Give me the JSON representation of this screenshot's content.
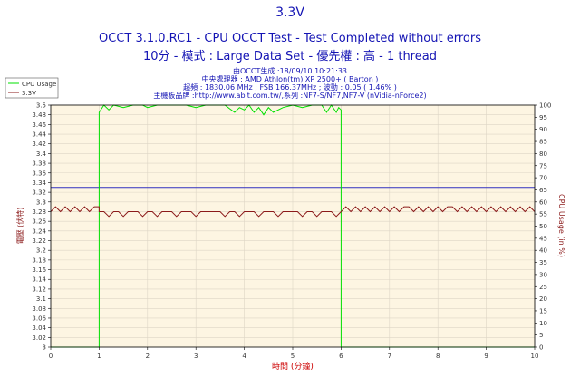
{
  "header": {
    "title": "3.3V",
    "subtitle1": "OCCT 3.1.0.RC1 - CPU OCCT Test - Test Completed without errors",
    "subtitle2": "10分 - 模式 : Large Data Set - 優先權 : 高 - 1 thread"
  },
  "info": {
    "line1": "由OCCT生成 :18/09/10 10:21:33",
    "line2": "中央處理器 : AMD Athlon(tm) XP 2500+ ( Barton )",
    "line3": "超頻 : 1830.06 MHz ; FSB 166.37MHz ; 波動 : 0.05 ( 1.46% )",
    "line4": "主機板品牌 :http://www.abit.com.tw/,系列 :NF7-S/NF7,NF7-V (nVidia-nForce2)"
  },
  "colors": {
    "background": "#ffffff",
    "plot_background": "#fdf5e2",
    "grid": "#ddd5c5",
    "title": "#1414b4",
    "cpu_usage": "#00e000",
    "voltage": "#8b1a1a",
    "reference_line": "#3030c0",
    "x_label": "#cc0000",
    "left_label": "#8b1a1a",
    "right_label": "#8b1a1a"
  },
  "chart_data": {
    "type": "line",
    "xlabel": "時間 (分鐘)",
    "ylabel_left": "電壓 (伏特)",
    "ylabel_right": "CPU Usage (in %)",
    "xlim": [
      0,
      10
    ],
    "ylim_left": [
      3.0,
      3.5
    ],
    "ylim_right": [
      0,
      100
    ],
    "x_ticks": [
      "0",
      "1",
      "2",
      "3",
      "4",
      "5",
      "6",
      "7",
      "8",
      "9",
      "10"
    ],
    "y_ticks_left": [
      "3",
      "3.02",
      "3.04",
      "3.06",
      "3.08",
      "3.1",
      "3.12",
      "3.14",
      "3.16",
      "3.18",
      "3.2",
      "3.22",
      "3.24",
      "3.26",
      "3.28",
      "3.3",
      "3.32",
      "3.34",
      "3.36",
      "3.38",
      "3.4",
      "3.42",
      "3.44",
      "3.46",
      "3.48",
      "3.5"
    ],
    "y_ticks_right": [
      "0",
      "5",
      "10",
      "15",
      "20",
      "25",
      "30",
      "35",
      "40",
      "45",
      "50",
      "55",
      "60",
      "65",
      "70",
      "75",
      "80",
      "85",
      "90",
      "95",
      "100"
    ],
    "grid": true,
    "legend_position": "top-left",
    "reference_line_value": 3.33,
    "series": [
      {
        "name": "CPU Usage",
        "axis": "right",
        "x": [
          0,
          1.0,
          1.0,
          1.1,
          1.2,
          1.3,
          1.5,
          1.7,
          1.9,
          2.0,
          2.2,
          2.4,
          2.6,
          2.8,
          3.0,
          3.2,
          3.4,
          3.6,
          3.8,
          3.9,
          4.0,
          4.1,
          4.2,
          4.3,
          4.4,
          4.5,
          4.6,
          4.8,
          5.0,
          5.2,
          5.4,
          5.6,
          5.7,
          5.8,
          5.9,
          5.95,
          6.0,
          6.0,
          10
        ],
        "y": [
          0,
          0,
          97,
          100,
          98,
          100,
          99,
          100,
          100,
          99,
          100,
          100,
          100,
          100,
          99,
          100,
          100,
          100,
          97,
          99,
          98,
          100,
          97,
          99,
          96,
          99,
          97,
          99,
          100,
          99,
          100,
          100,
          97,
          100,
          97,
          99,
          98,
          0,
          0
        ]
      },
      {
        "name": "3.3V",
        "axis": "left",
        "x": [
          0,
          0.1,
          0.2,
          0.3,
          0.4,
          0.5,
          0.6,
          0.7,
          0.8,
          0.9,
          1.0,
          1.0,
          1.1,
          1.2,
          1.3,
          1.4,
          1.5,
          1.6,
          1.7,
          1.8,
          1.9,
          2.0,
          2.1,
          2.2,
          2.3,
          2.4,
          2.5,
          2.6,
          2.7,
          2.8,
          2.9,
          3.0,
          3.1,
          3.2,
          3.3,
          3.4,
          3.5,
          3.6,
          3.7,
          3.8,
          3.9,
          4.0,
          4.1,
          4.2,
          4.3,
          4.4,
          4.5,
          4.6,
          4.7,
          4.8,
          4.9,
          5.0,
          5.1,
          5.2,
          5.3,
          5.4,
          5.5,
          5.6,
          5.7,
          5.8,
          5.9,
          6.0,
          6.0,
          6.1,
          6.2,
          6.3,
          6.4,
          6.5,
          6.6,
          6.7,
          6.8,
          6.9,
          7.0,
          7.1,
          7.2,
          7.3,
          7.4,
          7.5,
          7.6,
          7.7,
          7.8,
          7.9,
          8.0,
          8.1,
          8.2,
          8.3,
          8.4,
          8.5,
          8.6,
          8.7,
          8.8,
          8.9,
          9.0,
          9.1,
          9.2,
          9.3,
          9.4,
          9.5,
          9.6,
          9.7,
          9.8,
          9.9,
          10
        ],
        "y": [
          3.28,
          3.29,
          3.28,
          3.29,
          3.28,
          3.29,
          3.28,
          3.29,
          3.28,
          3.29,
          3.29,
          3.28,
          3.28,
          3.27,
          3.28,
          3.28,
          3.27,
          3.28,
          3.28,
          3.28,
          3.27,
          3.28,
          3.28,
          3.27,
          3.28,
          3.28,
          3.28,
          3.27,
          3.28,
          3.28,
          3.28,
          3.27,
          3.28,
          3.28,
          3.28,
          3.28,
          3.28,
          3.27,
          3.28,
          3.28,
          3.27,
          3.28,
          3.28,
          3.28,
          3.27,
          3.28,
          3.28,
          3.28,
          3.27,
          3.28,
          3.28,
          3.28,
          3.28,
          3.27,
          3.28,
          3.28,
          3.27,
          3.28,
          3.28,
          3.28,
          3.27,
          3.28,
          3.28,
          3.29,
          3.28,
          3.29,
          3.28,
          3.29,
          3.28,
          3.29,
          3.28,
          3.29,
          3.28,
          3.29,
          3.28,
          3.29,
          3.29,
          3.28,
          3.29,
          3.28,
          3.29,
          3.28,
          3.29,
          3.28,
          3.29,
          3.29,
          3.28,
          3.29,
          3.28,
          3.29,
          3.28,
          3.29,
          3.28,
          3.29,
          3.28,
          3.29,
          3.28,
          3.29,
          3.28,
          3.29,
          3.28,
          3.29,
          3.28
        ]
      }
    ]
  }
}
